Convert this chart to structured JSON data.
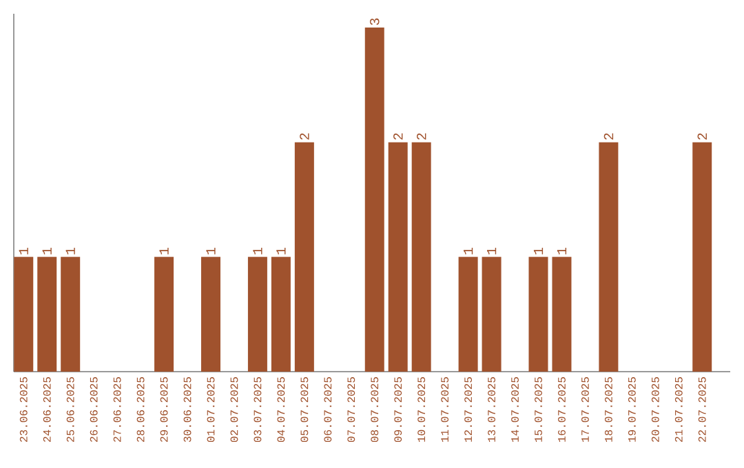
{
  "chart_data": {
    "type": "bar",
    "color": "#a0522d",
    "categories": [
      "23.06.2025",
      "24.06.2025",
      "25.06.2025",
      "26.06.2025",
      "27.06.2025",
      "28.06.2025",
      "29.06.2025",
      "30.06.2025",
      "01.07.2025",
      "02.07.2025",
      "03.07.2025",
      "04.07.2025",
      "05.07.2025",
      "06.07.2025",
      "07.07.2025",
      "08.07.2025",
      "09.07.2025",
      "10.07.2025",
      "11.07.2025",
      "12.07.2025",
      "13.07.2025",
      "14.07.2025",
      "15.07.2025",
      "16.07.2025",
      "17.07.2025",
      "18.07.2025",
      "19.07.2025",
      "20.07.2025",
      "21.07.2025",
      "22.07.2025"
    ],
    "values": [
      1,
      1,
      1,
      0,
      0,
      0,
      1,
      0,
      1,
      0,
      1,
      1,
      2,
      0,
      0,
      3,
      2,
      2,
      0,
      1,
      1,
      0,
      1,
      1,
      0,
      2,
      0,
      0,
      0,
      2
    ],
    "value_labels": [
      "1",
      "1",
      "1",
      null,
      null,
      null,
      "1",
      null,
      "1",
      null,
      "1",
      "1",
      "2",
      null,
      null,
      "3",
      "2",
      "2",
      null,
      "1",
      "1",
      null,
      "1",
      "1",
      null,
      "2",
      null,
      null,
      null,
      "2"
    ]
  }
}
